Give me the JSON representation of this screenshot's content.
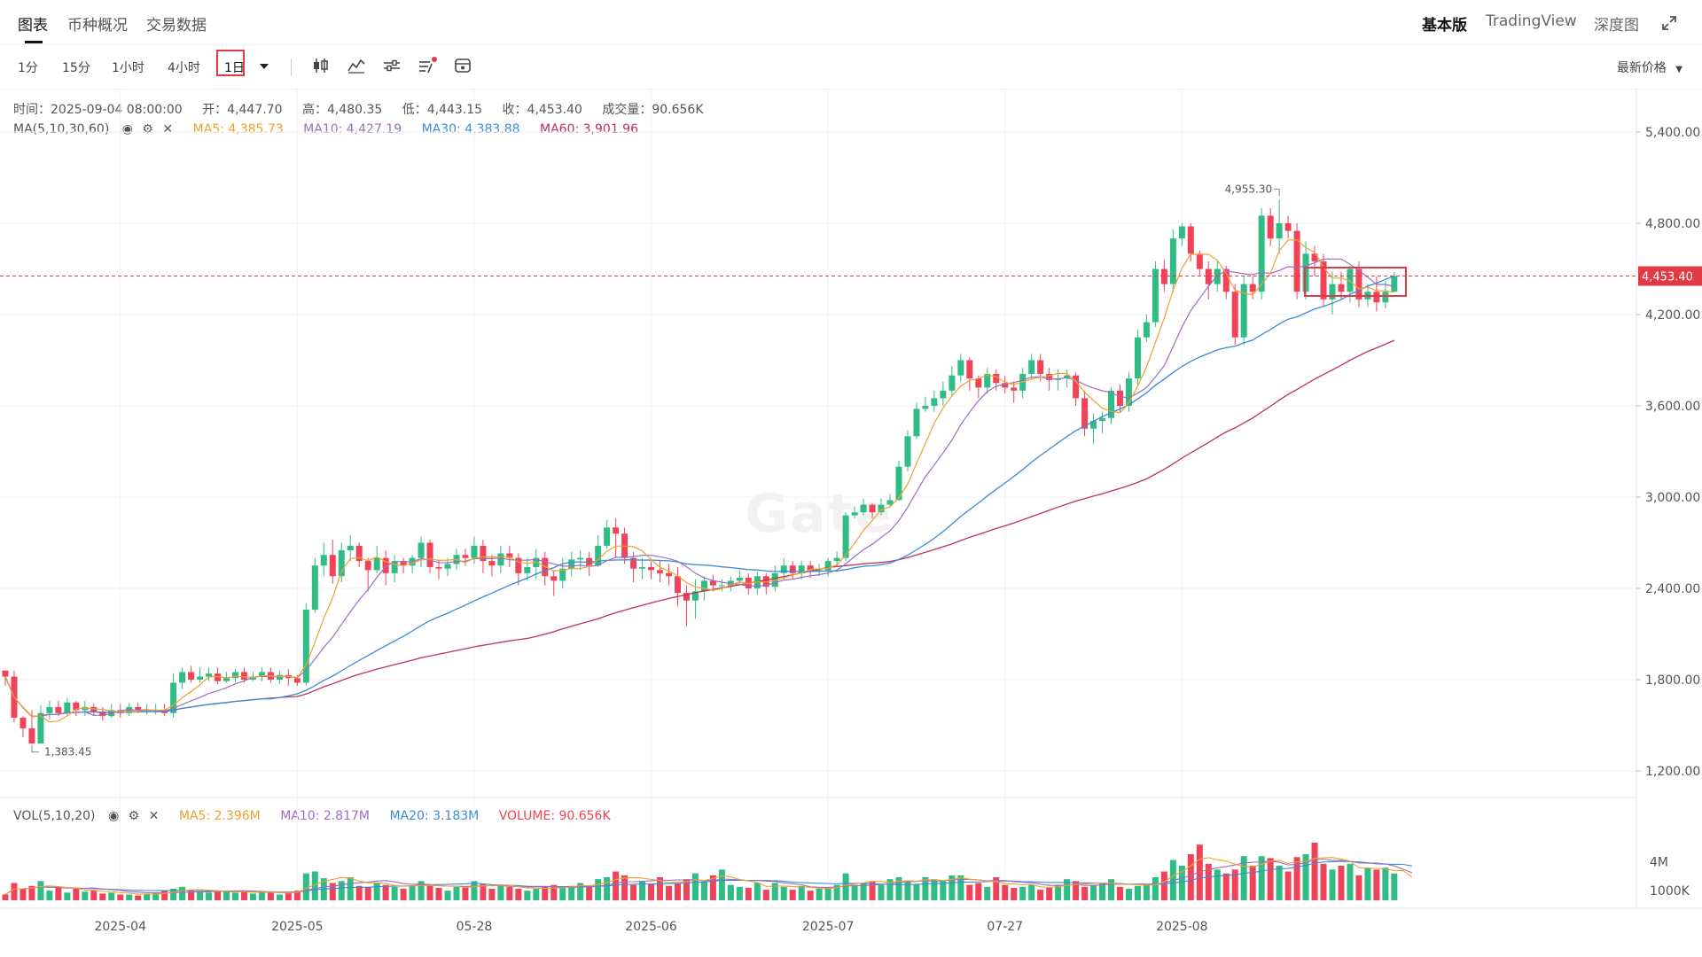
{
  "tabs": {
    "chart": "图表",
    "overview": "币种概况",
    "trade_data": "交易数据"
  },
  "right_tabs": {
    "basic": "基本版",
    "tradingview": "TradingView",
    "depth": "深度图"
  },
  "timeframes": [
    "1分",
    "15分",
    "1小时",
    "4小时",
    "1日"
  ],
  "active_timeframe": "1日",
  "price_type": "最新价格",
  "ohlc": {
    "time": "时间：2025-09-04 08:00:00",
    "open": "开：4,447.70",
    "high": "高：4,480.35",
    "low": "低：4,443.15",
    "close": "收：4,453.40",
    "volume": "成交量：90.656K"
  },
  "ma": {
    "label": "MA(5,10,30,60)",
    "ma5": "MA5: 4,385.73",
    "ma10": "MA10: 4,427.19",
    "ma30": "MA30: 4,383.88",
    "ma60": "MA60: 3,901.96"
  },
  "vol": {
    "label": "VOL(5,10,20)",
    "ma5": "MA5: 2.396M",
    "ma10": "MA10: 2.817M",
    "ma20": "MA20: 3.183M",
    "volume": "VOLUME: 90.656K"
  },
  "watermark": "Gate",
  "colors": {
    "up": "#2fbd85",
    "down": "#f0435a",
    "ma5": "#f0a030",
    "ma10": "#9a6fc0",
    "ma30": "#3c8ad8",
    "ma60": "#c0305a",
    "accent": "#e23a45"
  },
  "chart_data": {
    "type": "candlestick",
    "y_axis_labels": [
      "5,400.00",
      "4,800.00",
      "4,200.00",
      "3,600.00",
      "3,000.00",
      "2,400.00",
      "1,800.00",
      "1,200.00"
    ],
    "y_axis_values": [
      5400,
      4800,
      4200,
      3600,
      3000,
      2400,
      1800,
      1200
    ],
    "ylim": [
      1000,
      5700
    ],
    "x_axis_labels": [
      "2025-04",
      "2025-05",
      "05-28",
      "2025-06",
      "2025-07",
      "07-27",
      "2025-08"
    ],
    "x_axis_index": [
      13,
      33,
      53,
      73,
      93,
      113,
      133
    ],
    "vol_axis_labels": [
      "4M",
      "1000K"
    ],
    "vol_axis_values": [
      4000000,
      1000000
    ],
    "last_price": 4453.4,
    "last_price_label": "4,453.40",
    "max_annotation": "4,955.30",
    "min_annotation": "1,383.45",
    "closes": [
      1820,
      1550,
      1480,
      1380,
      1580,
      1620,
      1580,
      1650,
      1600,
      1620,
      1590,
      1560,
      1600,
      1580,
      1620,
      1600,
      1600,
      1600,
      1580,
      1780,
      1850,
      1800,
      1820,
      1840,
      1790,
      1810,
      1850,
      1800,
      1820,
      1850,
      1800,
      1830,
      1810,
      1780,
      2260,
      2550,
      2620,
      2480,
      2650,
      2680,
      2580,
      2520,
      2600,
      2500,
      2580,
      2550,
      2600,
      2700,
      2540,
      2530,
      2560,
      2620,
      2600,
      2680,
      2580,
      2550,
      2630,
      2600,
      2500,
      2540,
      2600,
      2480,
      2450,
      2530,
      2590,
      2600,
      2550,
      2680,
      2800,
      2760,
      2600,
      2530,
      2540,
      2520,
      2500,
      2480,
      2370,
      2320,
      2380,
      2450,
      2420,
      2420,
      2450,
      2470,
      2400,
      2480,
      2410,
      2500,
      2550,
      2500,
      2550,
      2520,
      2520,
      2580,
      2600,
      2880,
      2900,
      2950,
      2900,
      2950,
      2980,
      3200,
      3400,
      3580,
      3600,
      3650,
      3700,
      3800,
      3900,
      3780,
      3720,
      3810,
      3750,
      3720,
      3700,
      3810,
      3900,
      3810,
      3770,
      3780,
      3800,
      3650,
      3450,
      3500,
      3520,
      3700,
      3600,
      3780,
      4050,
      4150,
      4500,
      4400,
      4700,
      4780,
      4600,
      4500,
      4400,
      4500,
      4350,
      4050,
      4400,
      4350,
      4850,
      4700,
      4800,
      4750,
      4350,
      4600,
      4550,
      4300,
      4400,
      4350,
      4500,
      4300,
      4350,
      4280,
      4350,
      4453
    ],
    "highs": [
      1860,
      1860,
      1560,
      1600,
      1630,
      1660,
      1660,
      1680,
      1660,
      1660,
      1640,
      1620,
      1640,
      1640,
      1650,
      1650,
      1640,
      1640,
      1640,
      1840,
      1880,
      1890,
      1880,
      1880,
      1880,
      1850,
      1870,
      1880,
      1850,
      1880,
      1880,
      1860,
      1870,
      1830,
      2300,
      2600,
      2700,
      2720,
      2700,
      2750,
      2700,
      2600,
      2680,
      2650,
      2620,
      2600,
      2620,
      2740,
      2720,
      2580,
      2600,
      2660,
      2660,
      2740,
      2720,
      2620,
      2680,
      2680,
      2630,
      2600,
      2660,
      2640,
      2520,
      2600,
      2640,
      2650,
      2640,
      2750,
      2850,
      2860,
      2800,
      2640,
      2600,
      2580,
      2580,
      2560,
      2540,
      2420,
      2460,
      2480,
      2490,
      2460,
      2480,
      2520,
      2500,
      2510,
      2500,
      2550,
      2600,
      2580,
      2580,
      2580,
      2560,
      2600,
      2640,
      2900,
      2940,
      2990,
      2960,
      2990,
      3020,
      3240,
      3440,
      3620,
      3660,
      3700,
      3760,
      3860,
      3940,
      3920,
      3800,
      3850,
      3840,
      3800,
      3760,
      3850,
      3940,
      3940,
      3850,
      3840,
      3840,
      3820,
      3700,
      3550,
      3560,
      3720,
      3740,
      3820,
      4100,
      4200,
      4550,
      4560,
      4760,
      4800,
      4800,
      4620,
      4550,
      4560,
      4520,
      4400,
      4450,
      4450,
      4900,
      4900,
      4955,
      4850,
      4800,
      4680,
      4650,
      4600,
      4480,
      4480,
      4520,
      4550,
      4400,
      4450,
      4420,
      4480
    ],
    "lows": [
      1760,
      1520,
      1420,
      1383,
      1470,
      1540,
      1560,
      1560,
      1560,
      1560,
      1560,
      1530,
      1550,
      1550,
      1560,
      1580,
      1570,
      1570,
      1560,
      1550,
      1740,
      1780,
      1780,
      1790,
      1770,
      1780,
      1780,
      1780,
      1790,
      1790,
      1780,
      1770,
      1760,
      1760,
      1760,
      2240,
      2480,
      2430,
      2440,
      2580,
      2540,
      2380,
      2500,
      2420,
      2440,
      2500,
      2500,
      2540,
      2500,
      2460,
      2480,
      2520,
      2550,
      2560,
      2500,
      2480,
      2500,
      2540,
      2420,
      2450,
      2460,
      2420,
      2350,
      2400,
      2480,
      2520,
      2480,
      2540,
      2660,
      2600,
      2560,
      2440,
      2460,
      2460,
      2440,
      2420,
      2280,
      2150,
      2200,
      2320,
      2380,
      2380,
      2380,
      2420,
      2360,
      2360,
      2360,
      2380,
      2460,
      2460,
      2460,
      2470,
      2480,
      2480,
      2540,
      2580,
      2860,
      2880,
      2860,
      2880,
      2940,
      2980,
      3170,
      3380,
      3560,
      3560,
      3600,
      3660,
      3760,
      3700,
      3650,
      3680,
      3700,
      3680,
      3620,
      3650,
      3780,
      3760,
      3700,
      3700,
      3720,
      3600,
      3400,
      3350,
      3420,
      3480,
      3560,
      3560,
      3740,
      4020,
      4120,
      4350,
      4350,
      4650,
      4550,
      4450,
      4300,
      4350,
      4300,
      4000,
      4000,
      4300,
      4300,
      4650,
      4600,
      4700,
      4300,
      4300,
      4450,
      4250,
      4200,
      4300,
      4280,
      4250,
      4250,
      4220,
      4240,
      4440
    ],
    "volumes": [
      0.6,
      1.8,
      1.2,
      1.5,
      2.0,
      1.0,
      1.4,
      0.8,
      1.2,
      0.9,
      1.0,
      0.7,
      0.8,
      0.6,
      0.6,
      0.5,
      0.7,
      0.8,
      1.0,
      1.2,
      1.4,
      1.0,
      0.9,
      0.8,
      0.9,
      1.0,
      0.8,
      0.9,
      0.7,
      0.8,
      0.9,
      0.6,
      0.8,
      1.0,
      2.8,
      3.0,
      2.3,
      1.8,
      2.0,
      2.4,
      1.5,
      1.4,
      1.8,
      1.6,
      1.4,
      1.2,
      1.5,
      2.0,
      1.6,
      1.3,
      1.0,
      1.4,
      1.4,
      2.0,
      1.7,
      1.2,
      1.6,
      1.4,
      1.2,
      1.0,
      1.2,
      1.4,
      1.6,
      1.3,
      1.5,
      1.8,
      1.4,
      2.2,
      2.4,
      3.0,
      2.6,
      1.6,
      2.0,
      1.7,
      2.4,
      1.5,
      1.8,
      2.2,
      2.8,
      2.0,
      2.6,
      3.2,
      1.6,
      1.4,
      1.3,
      1.8,
      1.1,
      1.8,
      1.4,
      1.1,
      1.5,
      1.0,
      1.2,
      1.3,
      1.6,
      2.8,
      1.6,
      1.8,
      2.0,
      1.6,
      2.2,
      2.4,
      2.0,
      1.7,
      2.4,
      2.2,
      2.0,
      2.6,
      2.6,
      1.6,
      1.8,
      1.4,
      2.4,
      1.6,
      1.3,
      1.4,
      1.6,
      1.1,
      1.3,
      1.6,
      2.2,
      2.0,
      1.4,
      1.6,
      1.8,
      2.2,
      1.4,
      1.2,
      1.5,
      1.6,
      2.4,
      3.0,
      4.2,
      3.6,
      4.8,
      5.8,
      3.8,
      3.2,
      2.8,
      3.2,
      4.6,
      3.6,
      4.6,
      4.4,
      3.6,
      3.0,
      4.5,
      4.8,
      6.0,
      3.8,
      3.2,
      3.6,
      3.8,
      2.6,
      3.4,
      3.2,
      3.4,
      2.8,
      2.6,
      0.09
    ]
  }
}
